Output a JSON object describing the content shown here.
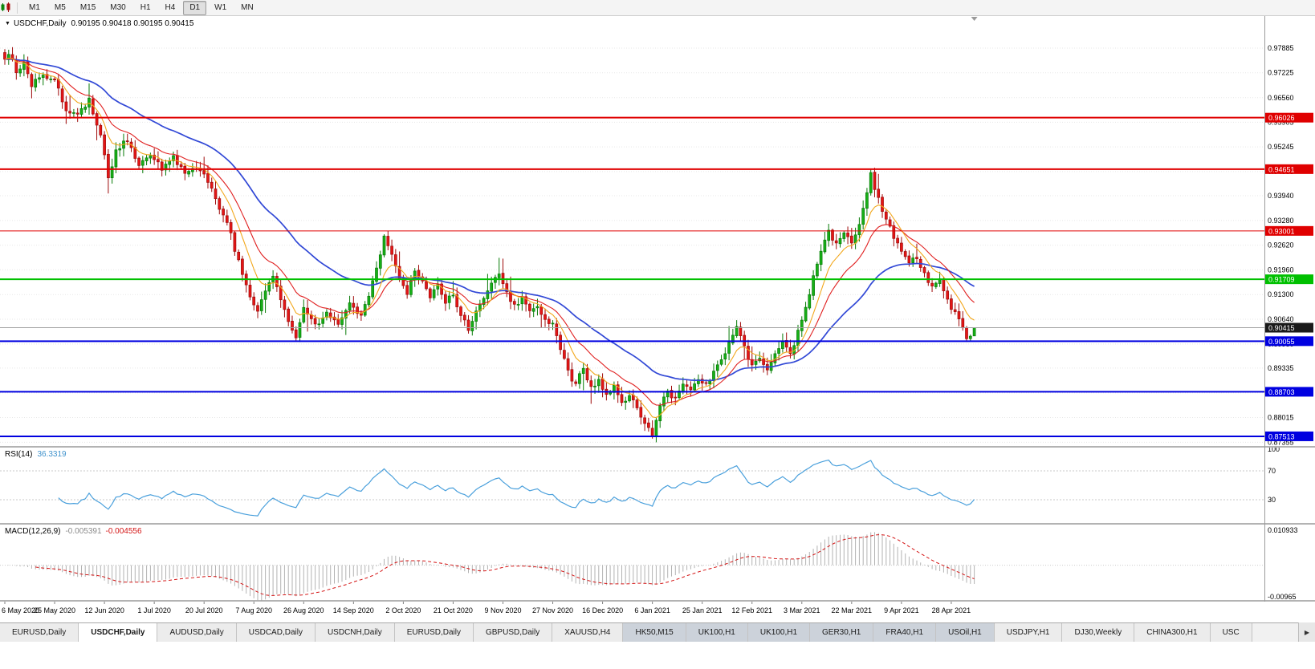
{
  "colors": {
    "candle_up": "#17b017",
    "candle_up_dark": "#067a06",
    "candle_down": "#e51616",
    "candle_down_dark": "#9e0a0a",
    "ma_fast": "#f2a71b",
    "ma_mid": "#e02020",
    "ma_slow": "#3148d6",
    "rsi": "#4aa0dc",
    "macd_hist": "#b2b2b2",
    "macd_signal": "#d41414",
    "grid": "#e7e7e7",
    "current_price_line": "#a0a0a0",
    "current_price_box": "#1a1a1a"
  },
  "toolbar": {
    "icon_caret": "▾",
    "timeframes": [
      "M1",
      "M5",
      "M15",
      "M30",
      "H1",
      "H4",
      "D1",
      "W1",
      "MN"
    ],
    "active": "D1"
  },
  "chart": {
    "collapse_arrow": "▼",
    "title": "USDCHF,Daily",
    "ohlc_text": "0.90195 0.90418 0.90195 0.90415"
  },
  "chart_data": {
    "type": "candlestick",
    "symbol": "USDCHF",
    "period": "Daily",
    "last_ohlc": {
      "open": 0.90195,
      "high": 0.90418,
      "low": 0.90195,
      "close": 0.90415
    },
    "ylim": [
      0.87276,
      0.98698
    ],
    "price_ticks": [
      "0.97885",
      "0.97225",
      "0.96560",
      "0.95905",
      "0.95245",
      "0.94585",
      "0.93940",
      "0.93280",
      "0.92620",
      "0.91960",
      "0.91300",
      "0.90640",
      "0.89980",
      "0.89335",
      "0.88675",
      "0.88015",
      "0.87355"
    ],
    "hlines": [
      {
        "price": 0.96026,
        "label": "0.96026",
        "color": "#e00000",
        "width": 2
      },
      {
        "price": 0.94651,
        "label": "0.94651",
        "color": "#e00000",
        "width": 2
      },
      {
        "price": 0.93001,
        "label": "0.93001",
        "color": "#e00000",
        "width": 1
      },
      {
        "price": 0.91709,
        "label": "0.91709",
        "color": "#00c000",
        "width": 2
      },
      {
        "price": 0.90055,
        "label": "0.90055",
        "color": "#0000e0",
        "width": 2
      },
      {
        "price": 0.88703,
        "label": "0.88703",
        "color": "#0000e0",
        "width": 2
      },
      {
        "price": 0.87513,
        "label": "0.87513",
        "color": "#0000e0",
        "width": 2
      }
    ],
    "current_price": {
      "value": 0.90415,
      "label": "0.90415"
    },
    "num_candles": 254,
    "date_step": 13,
    "x_dates": [
      "6 May 2020",
      "25 May 2020",
      "12 Jun 2020",
      "1 Jul 2020",
      "20 Jul 2020",
      "7 Aug 2020",
      "26 Aug 2020",
      "14 Sep 2020",
      "2 Oct 2020",
      "21 Oct 2020",
      "9 Nov 2020",
      "27 Nov 2020",
      "16 Dec 2020",
      "6 Jan 2021",
      "25 Jan 2021",
      "12 Feb 2021",
      "3 Mar 2021",
      "22 Mar 2021",
      "9 Apr 2021",
      "28 Apr 2021"
    ],
    "anchors": [
      [
        0,
        0.9752
      ],
      [
        1,
        0.9775
      ],
      [
        3,
        0.9728
      ],
      [
        5,
        0.9745
      ],
      [
        7,
        0.9692
      ],
      [
        10,
        0.9716
      ],
      [
        13,
        0.97
      ],
      [
        16,
        0.9628
      ],
      [
        19,
        0.9608
      ],
      [
        22,
        0.9648
      ],
      [
        25,
        0.956
      ],
      [
        27,
        0.9438
      ],
      [
        29,
        0.9512
      ],
      [
        32,
        0.9546
      ],
      [
        35,
        0.9478
      ],
      [
        38,
        0.9506
      ],
      [
        41,
        0.9464
      ],
      [
        44,
        0.9496
      ],
      [
        47,
        0.9456
      ],
      [
        50,
        0.9472
      ],
      [
        52,
        0.945
      ],
      [
        55,
        0.9386
      ],
      [
        58,
        0.9322
      ],
      [
        61,
        0.9218
      ],
      [
        64,
        0.9128
      ],
      [
        66,
        0.9088
      ],
      [
        68,
        0.9136
      ],
      [
        70,
        0.918
      ],
      [
        72,
        0.9118
      ],
      [
        74,
        0.9058
      ],
      [
        76,
        0.9012
      ],
      [
        78,
        0.9094
      ],
      [
        81,
        0.9046
      ],
      [
        84,
        0.9082
      ],
      [
        87,
        0.9058
      ],
      [
        90,
        0.9108
      ],
      [
        93,
        0.9076
      ],
      [
        95,
        0.9122
      ],
      [
        97,
        0.9198
      ],
      [
        99,
        0.9282
      ],
      [
        101,
        0.9242
      ],
      [
        103,
        0.9178
      ],
      [
        105,
        0.9136
      ],
      [
        107,
        0.9198
      ],
      [
        109,
        0.9164
      ],
      [
        111,
        0.9128
      ],
      [
        113,
        0.915
      ],
      [
        115,
        0.9108
      ],
      [
        117,
        0.913
      ],
      [
        119,
        0.9074
      ],
      [
        121,
        0.904
      ],
      [
        123,
        0.9082
      ],
      [
        125,
        0.9122
      ],
      [
        127,
        0.9154
      ],
      [
        129,
        0.9186
      ],
      [
        131,
        0.913
      ],
      [
        133,
        0.9098
      ],
      [
        135,
        0.9124
      ],
      [
        137,
        0.908
      ],
      [
        139,
        0.9104
      ],
      [
        141,
        0.9062
      ],
      [
        143,
        0.9054
      ],
      [
        145,
        0.899
      ],
      [
        147,
        0.8922
      ],
      [
        149,
        0.889
      ],
      [
        151,
        0.8934
      ],
      [
        153,
        0.888
      ],
      [
        155,
        0.8906
      ],
      [
        157,
        0.8856
      ],
      [
        159,
        0.8884
      ],
      [
        161,
        0.8836
      ],
      [
        163,
        0.8864
      ],
      [
        165,
        0.8822
      ],
      [
        167,
        0.8786
      ],
      [
        169,
        0.8758
      ],
      [
        171,
        0.883
      ],
      [
        173,
        0.8868
      ],
      [
        175,
        0.8854
      ],
      [
        177,
        0.8894
      ],
      [
        179,
        0.887
      ],
      [
        181,
        0.8904
      ],
      [
        183,
        0.8886
      ],
      [
        185,
        0.892
      ],
      [
        187,
        0.8958
      ],
      [
        189,
        0.9
      ],
      [
        191,
        0.904
      ],
      [
        193,
        0.8986
      ],
      [
        195,
        0.8936
      ],
      [
        197,
        0.8964
      ],
      [
        199,
        0.893
      ],
      [
        201,
        0.8974
      ],
      [
        203,
        0.901
      ],
      [
        205,
        0.8972
      ],
      [
        207,
        0.9028
      ],
      [
        209,
        0.9094
      ],
      [
        211,
        0.9178
      ],
      [
        213,
        0.9248
      ],
      [
        215,
        0.9298
      ],
      [
        217,
        0.9262
      ],
      [
        219,
        0.9288
      ],
      [
        221,
        0.9272
      ],
      [
        223,
        0.9318
      ],
      [
        225,
        0.9398
      ],
      [
        226,
        0.945
      ],
      [
        228,
        0.9382
      ],
      [
        230,
        0.933
      ],
      [
        232,
        0.9282
      ],
      [
        234,
        0.9246
      ],
      [
        236,
        0.9212
      ],
      [
        238,
        0.9232
      ],
      [
        240,
        0.9182
      ],
      [
        242,
        0.9152
      ],
      [
        244,
        0.9166
      ],
      [
        246,
        0.912
      ],
      [
        247,
        0.9096
      ],
      [
        249,
        0.9064
      ],
      [
        251,
        0.9012
      ],
      [
        252,
        0.9022
      ],
      [
        253,
        0.90415
      ]
    ],
    "moving_averages": [
      {
        "period": 8,
        "color_key": "ma_fast",
        "width": 1.1
      },
      {
        "period": 16,
        "color_key": "ma_mid",
        "width": 1.1
      },
      {
        "period": 40,
        "color_key": "ma_slow",
        "width": 1.7
      }
    ],
    "rsi": {
      "label": "RSI(14)",
      "value": "36.3319",
      "period": 14,
      "ticks": [
        100,
        70,
        30
      ],
      "levels": [
        70,
        30
      ]
    },
    "macd": {
      "label": "MACD(12,26,9)",
      "value_main": "-0.005391",
      "value_signal": "-0.004556",
      "fast": 12,
      "slow": 26,
      "signal": 9,
      "tick_top": "0.010933",
      "tick_bottom": "-0.00965",
      "range": [
        -0.0097,
        0.0109
      ]
    }
  },
  "tabs": [
    {
      "label": "EURUSD,Daily",
      "state": "normal"
    },
    {
      "label": "USDCHF,Daily",
      "state": "active"
    },
    {
      "label": "AUDUSD,Daily",
      "state": "normal"
    },
    {
      "label": "USDCAD,Daily",
      "state": "normal"
    },
    {
      "label": "USDCNH,Daily",
      "state": "normal"
    },
    {
      "label": "EURUSD,Daily",
      "state": "normal"
    },
    {
      "label": "GBPUSD,Daily",
      "state": "normal"
    },
    {
      "label": "XAUUSD,H4",
      "state": "normal"
    },
    {
      "label": "HK50,M15",
      "state": "highlighted"
    },
    {
      "label": "UK100,H1",
      "state": "highlighted"
    },
    {
      "label": "UK100,H1",
      "state": "highlighted"
    },
    {
      "label": "GER30,H1",
      "state": "highlighted"
    },
    {
      "label": "FRA40,H1",
      "state": "highlighted"
    },
    {
      "label": "USOil,H1",
      "state": "highlighted"
    },
    {
      "label": "USDJPY,H1",
      "state": "normal"
    },
    {
      "label": "DJ30,Weekly",
      "state": "normal"
    },
    {
      "label": "CHINA300,H1",
      "state": "normal"
    },
    {
      "label": "USC",
      "state": "normal"
    }
  ],
  "tab_scroll": "▶"
}
